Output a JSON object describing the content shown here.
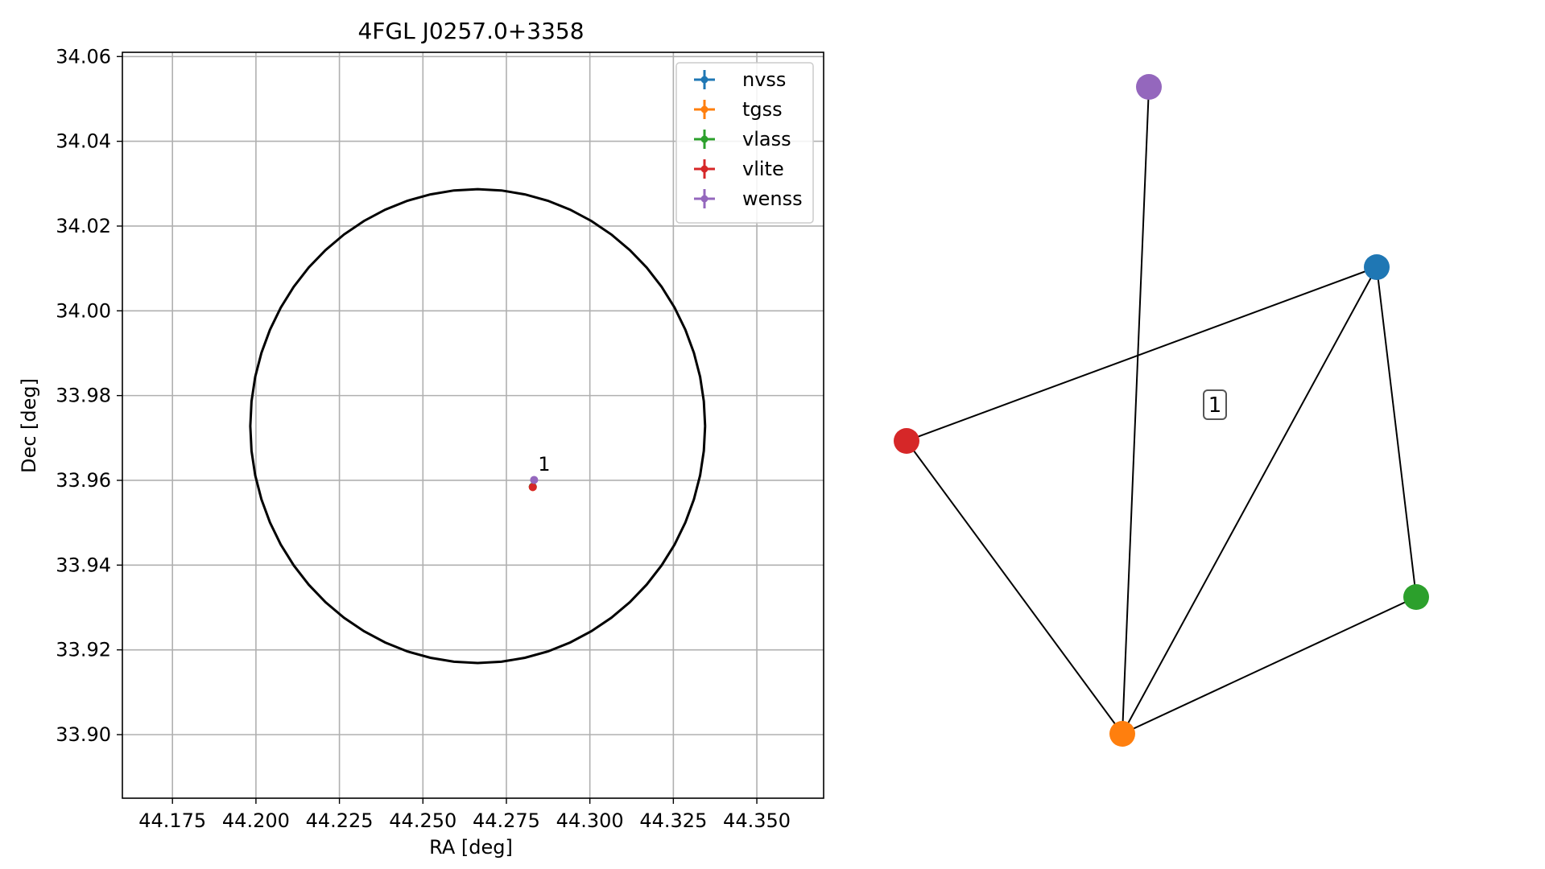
{
  "chart_data": [
    {
      "type": "scatter",
      "title": "4FGL J0257.0+3358",
      "xlabel": "RA [deg]",
      "ylabel": "Dec [deg]",
      "xlim": [
        44.16,
        44.37
      ],
      "ylim": [
        33.885,
        34.061
      ],
      "xticks": [
        "44.175",
        "44.200",
        "44.225",
        "44.250",
        "44.275",
        "44.300",
        "44.325",
        "44.350"
      ],
      "yticks": [
        "33.90",
        "33.92",
        "33.94",
        "33.96",
        "33.98",
        "34.00",
        "34.02",
        "34.04",
        "34.06"
      ],
      "grid": true,
      "legend_placement": "top-right",
      "series": [
        {
          "name": "nvss",
          "color": "#1f77b4",
          "x": [
            44.2829
          ],
          "y": [
            33.9585
          ]
        },
        {
          "name": "tgss",
          "color": "#ff7f0e",
          "x": [
            44.2829
          ],
          "y": [
            33.9584
          ]
        },
        {
          "name": "vlass",
          "color": "#2ca02c",
          "x": [
            44.2829
          ],
          "y": [
            33.9585
          ]
        },
        {
          "name": "vlite",
          "color": "#d62728",
          "x": [
            44.2829
          ],
          "y": [
            33.9584
          ]
        },
        {
          "name": "wenss",
          "color": "#9467bd",
          "x": [
            44.2833
          ],
          "y": [
            33.9601
          ]
        }
      ],
      "annotations": [
        {
          "text": "1",
          "x": 44.2863,
          "y": 33.9623
        }
      ],
      "ellipse": {
        "center": [
          44.2664,
          33.9728
        ],
        "ra_semi_axis_deg": 0.0681,
        "dec_semi_axis_deg": 0.0559,
        "color": "#000000"
      }
    },
    {
      "type": "network",
      "nodes": [
        {
          "id": "nvss",
          "color": "#1f77b4"
        },
        {
          "id": "tgss",
          "color": "#ff7f0e"
        },
        {
          "id": "vlass",
          "color": "#2ca02c"
        },
        {
          "id": "vlite",
          "color": "#d62728"
        },
        {
          "id": "wenss",
          "color": "#9467bd"
        }
      ],
      "edges": [
        [
          "vlite",
          "nvss"
        ],
        [
          "vlite",
          "tgss"
        ],
        [
          "wenss",
          "tgss"
        ],
        [
          "nvss",
          "tgss"
        ],
        [
          "nvss",
          "vlass"
        ],
        [
          "vlass",
          "tgss"
        ]
      ],
      "cluster_label": "1"
    }
  ]
}
